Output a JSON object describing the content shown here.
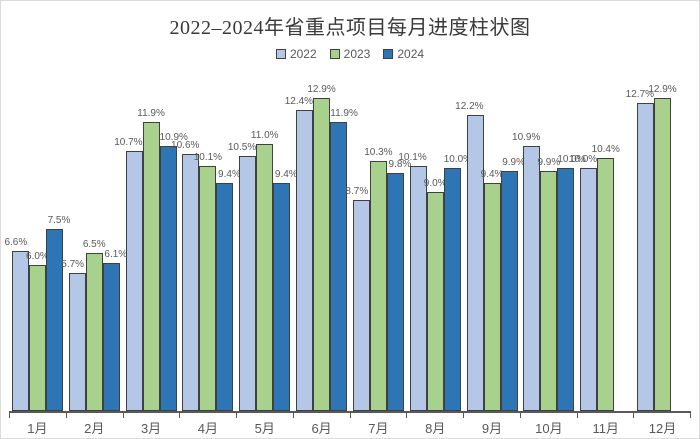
{
  "window": {
    "background": "#ffffff",
    "border_color": "#dcdcdc",
    "text_muted_color": "#595959",
    "axis_color": "#595959",
    "bar_outline_color": "#404040"
  },
  "chart_data": {
    "type": "bar",
    "title": "2022–2024年省重点项目每月进度柱状图",
    "categories": [
      "1月",
      "2月",
      "3月",
      "4月",
      "5月",
      "6月",
      "7月",
      "8月",
      "9月",
      "10月",
      "11月",
      "12月"
    ],
    "series": [
      {
        "name": "2022",
        "color": "#b4c7e7",
        "values": [
          6.6,
          5.7,
          10.7,
          10.6,
          10.5,
          12.4,
          8.7,
          10.1,
          12.2,
          10.9,
          10.0,
          12.7
        ]
      },
      {
        "name": "2023",
        "color": "#a9d18e",
        "values": [
          6.0,
          6.5,
          11.9,
          10.1,
          11.0,
          12.9,
          10.3,
          9.0,
          9.4,
          9.9,
          10.4,
          12.9
        ]
      },
      {
        "name": "2024",
        "color": "#2e75b6",
        "values": [
          7.5,
          6.1,
          10.9,
          9.4,
          9.4,
          11.9,
          9.8,
          10.0,
          9.9,
          10.0,
          null,
          null
        ]
      }
    ],
    "value_suffix": "%",
    "data_labels": true,
    "ylim": [
      0,
      14
    ],
    "grid": false,
    "legend_position": "top",
    "xlabel": "",
    "ylabel": ""
  }
}
